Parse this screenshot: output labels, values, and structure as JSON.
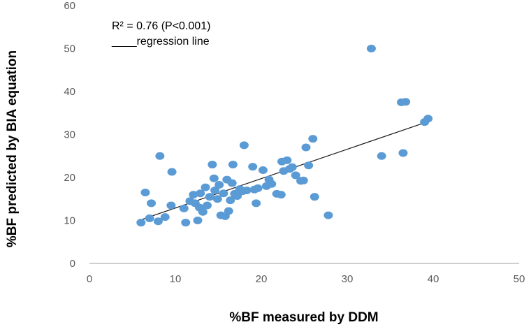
{
  "chart_data": {
    "type": "scatter",
    "xlabel": "%BF measured by DDM",
    "ylabel": "%BF predicted by BIA equation",
    "xlim": [
      0,
      50
    ],
    "ylim": [
      0,
      60
    ],
    "x_ticks": [
      "0",
      "10",
      "20",
      "30",
      "40",
      "50"
    ],
    "y_ticks": [
      "0",
      "10",
      "20",
      "30",
      "40",
      "50",
      "60"
    ],
    "grid": false,
    "annotations": {
      "r_squared": "R² = 0.76 (P<0.001)",
      "legend_line": "____regression line"
    },
    "regression_line": {
      "x": [
        6.2,
        39.4
      ],
      "y": [
        10.3,
        33.0
      ]
    },
    "colors": {
      "points": "#5B9BD5",
      "line": "#1a1a1a",
      "axis": "#bfbfbf"
    },
    "points": [
      [
        6,
        9.5
      ],
      [
        6.5,
        16.5
      ],
      [
        7,
        10.5
      ],
      [
        7.2,
        14
      ],
      [
        8,
        9.8
      ],
      [
        8.2,
        25
      ],
      [
        8.8,
        10.8
      ],
      [
        9.5,
        13.5
      ],
      [
        9.6,
        21.3
      ],
      [
        11,
        12.8
      ],
      [
        11.2,
        9.5
      ],
      [
        11.7,
        14.5
      ],
      [
        12.1,
        16
      ],
      [
        12.3,
        14
      ],
      [
        12.6,
        10
      ],
      [
        12.8,
        13
      ],
      [
        12.9,
        16.3
      ],
      [
        13.2,
        12
      ],
      [
        13.5,
        17.7
      ],
      [
        13.7,
        13.5
      ],
      [
        14,
        15.5
      ],
      [
        14.3,
        23
      ],
      [
        14.5,
        19.8
      ],
      [
        14.6,
        17
      ],
      [
        14.9,
        15
      ],
      [
        15.1,
        18.3
      ],
      [
        15.3,
        11.2
      ],
      [
        15.6,
        16.3
      ],
      [
        15.8,
        11
      ],
      [
        16,
        19.5
      ],
      [
        16.2,
        12.2
      ],
      [
        16.4,
        14.7
      ],
      [
        16.6,
        18.7
      ],
      [
        16.7,
        23
      ],
      [
        16.9,
        16.2
      ],
      [
        17.2,
        15.7
      ],
      [
        17.5,
        17.3
      ],
      [
        17.8,
        16.8
      ],
      [
        18,
        27.5
      ],
      [
        18.3,
        17
      ],
      [
        19,
        22.5
      ],
      [
        19.2,
        17.2
      ],
      [
        19.4,
        14
      ],
      [
        19.6,
        17.5
      ],
      [
        20.2,
        21.7
      ],
      [
        20.6,
        18
      ],
      [
        20.9,
        19.5
      ],
      [
        21.2,
        18.5
      ],
      [
        21.8,
        16.2
      ],
      [
        22.3,
        16
      ],
      [
        22.4,
        23.7
      ],
      [
        22.6,
        21.5
      ],
      [
        23,
        24
      ],
      [
        23.3,
        22
      ],
      [
        23.6,
        22.4
      ],
      [
        24,
        20.5
      ],
      [
        24.6,
        19.2
      ],
      [
        24.9,
        19.3
      ],
      [
        25.2,
        27
      ],
      [
        25.5,
        22.8
      ],
      [
        26,
        29
      ],
      [
        26.2,
        15.5
      ],
      [
        27.8,
        11.2
      ],
      [
        32.8,
        50
      ],
      [
        34,
        25
      ],
      [
        36.3,
        37.5
      ],
      [
        36.5,
        25.7
      ],
      [
        36.8,
        37.6
      ],
      [
        39,
        32.9
      ],
      [
        39.4,
        33.7
      ]
    ]
  }
}
